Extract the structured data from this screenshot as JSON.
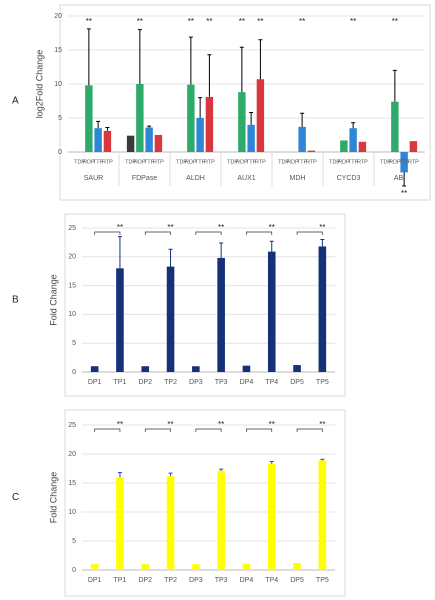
{
  "chart_data": [
    {
      "type": "bar",
      "panel_label": "A",
      "ylabel": "log2Fold Change",
      "categories": [
        "SAUR",
        "FDPase",
        "ALDH",
        "AUX1",
        "MDH",
        "CYCD3",
        "ABI"
      ],
      "series": [
        {
          "name": "TDP",
          "color": "#3a3a3a",
          "values": [
            0,
            2.4,
            0,
            0,
            0,
            0,
            0
          ],
          "errors": [
            0,
            0,
            0,
            0,
            0,
            0,
            0
          ]
        },
        {
          "name": "RDP",
          "color": "#2eaa6a",
          "values": [
            9.8,
            10,
            9.9,
            8.8,
            0,
            1.7,
            7.4
          ],
          "errors": [
            8.3,
            8,
            7,
            6.6,
            0,
            0,
            4.6
          ]
        },
        {
          "name": "TTP",
          "color": "#2f86d6",
          "values": [
            3.5,
            3.6,
            5,
            4,
            3.7,
            3.5,
            -3
          ],
          "errors": [
            1,
            0.2,
            3,
            1.8,
            2,
            0.8,
            2
          ]
        },
        {
          "name": "RTP",
          "color": "#d9363e",
          "values": [
            3.1,
            2.5,
            8.1,
            10.7,
            0.2,
            1.5,
            1.6
          ],
          "errors": [
            0.5,
            0,
            6.2,
            5.8,
            0,
            0,
            0
          ]
        }
      ],
      "annotations": [
        {
          "text": "**",
          "category": "SAUR",
          "series": "RDP"
        },
        {
          "text": "**",
          "category": "FDPase",
          "series": "RDP"
        },
        {
          "text": "**",
          "category": "ALDH",
          "series": "RDP"
        },
        {
          "text": "**",
          "category": "ALDH",
          "series": "RTP"
        },
        {
          "text": "**",
          "category": "AUX1",
          "series": "RDP"
        },
        {
          "text": "**",
          "category": "AUX1",
          "series": "RTP"
        },
        {
          "text": "**",
          "category": "MDH",
          "series": "TTP"
        },
        {
          "text": "**",
          "category": "CYCD3",
          "series": "TTP"
        },
        {
          "text": "**",
          "category": "ABI",
          "series": "RDP"
        },
        {
          "text": "**",
          "category": "ABI",
          "series": "TTP"
        }
      ],
      "ylim": [
        -5,
        20
      ],
      "yticks": [
        0,
        5,
        10,
        15,
        20
      ],
      "grid": true,
      "error_color": "#000000"
    },
    {
      "type": "bar",
      "panel_label": "B",
      "ylabel": "Fold Change",
      "categories": [
        "DP1",
        "TP1",
        "DP2",
        "TP2",
        "DP3",
        "TP3",
        "DP4",
        "TP4",
        "DP5",
        "TP5"
      ],
      "values": [
        1,
        18,
        1,
        18.3,
        1,
        19.8,
        1.1,
        20.9,
        1.2,
        21.8
      ],
      "errors": [
        0,
        5.5,
        0,
        3,
        0,
        2.6,
        0,
        1.8,
        0,
        1.2
      ],
      "color": "#16317a",
      "error_color": "#16317a",
      "annotations": [
        {
          "text": "**",
          "from": "DP1",
          "to": "TP1"
        },
        {
          "text": "**",
          "from": "DP2",
          "to": "TP2"
        },
        {
          "text": "**",
          "from": "DP3",
          "to": "TP3"
        },
        {
          "text": "**",
          "from": "DP4",
          "to": "TP4"
        },
        {
          "text": "**",
          "from": "DP5",
          "to": "TP5"
        }
      ],
      "ylim": [
        0,
        25
      ],
      "yticks": [
        0,
        5,
        10,
        15,
        20,
        25
      ],
      "grid": true
    },
    {
      "type": "bar",
      "panel_label": "C",
      "ylabel": "Fold Change",
      "categories": [
        "DP1",
        "TP1",
        "DP2",
        "TP2",
        "DP3",
        "TP3",
        "DP4",
        "TP4",
        "DP5",
        "TP5"
      ],
      "values": [
        1,
        16,
        1,
        16.2,
        1,
        17.1,
        1.1,
        18.3,
        1.2,
        18.9
      ],
      "errors": [
        0,
        0.8,
        0,
        0.5,
        0,
        0.3,
        0,
        0.4,
        0,
        0.2
      ],
      "color": "#ffff00",
      "error_color": "#3b3bd0",
      "annotations": [
        {
          "text": "**",
          "from": "DP1",
          "to": "TP1"
        },
        {
          "text": "**",
          "from": "DP2",
          "to": "TP2"
        },
        {
          "text": "**",
          "from": "DP3",
          "to": "TP3"
        },
        {
          "text": "**",
          "from": "DP4",
          "to": "TP4"
        },
        {
          "text": "**",
          "from": "DP5",
          "to": "TP5"
        }
      ],
      "ylim": [
        0,
        25
      ],
      "yticks": [
        0,
        5,
        10,
        15,
        20,
        25
      ],
      "grid": true
    }
  ]
}
